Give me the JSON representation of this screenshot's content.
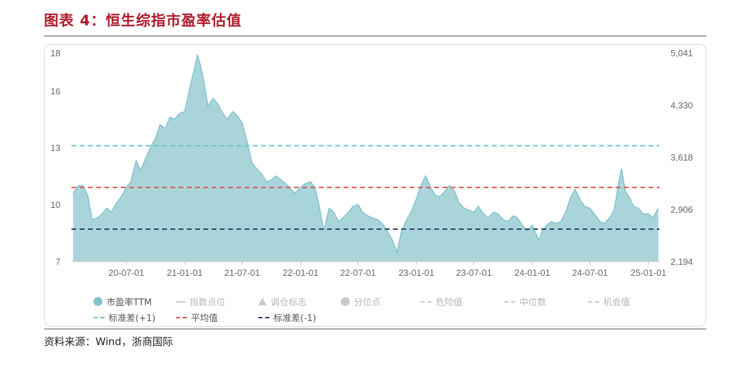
{
  "title": "图表 4：恒生综指市盈率估值",
  "source": "资料来源：Wind，浙商国际",
  "colors": {
    "title": "#b0182a",
    "area_fill": "#a9d5da",
    "area_stroke": "#7fc3cb",
    "plus1": "#6cc4c2",
    "mean": "#d9534f",
    "minus1": "#2c3e6b",
    "muted": "#c8c8c8"
  },
  "legend": [
    {
      "label": "市盈率TTM",
      "symbol": "dot",
      "color": "#7fc3cb",
      "muted": false
    },
    {
      "label": "指数点位",
      "symbol": "line",
      "color": "#c8c8c8",
      "muted": true
    },
    {
      "label": "调仓标志",
      "symbol": "triangle",
      "color": "#c8c8c8",
      "muted": true
    },
    {
      "label": "分位点",
      "symbol": "dot",
      "color": "#c8c8c8",
      "muted": true
    },
    {
      "label": "危险值",
      "symbol": "dash",
      "color": "#c8c8c8",
      "muted": true
    },
    {
      "label": "中位数",
      "symbol": "dash",
      "color": "#c8c8c8",
      "muted": true
    },
    {
      "label": "机会值",
      "symbol": "dash",
      "color": "#c8c8c8",
      "muted": true
    },
    {
      "label": "标准差(+1)",
      "symbol": "dash",
      "color": "#6cc4c2",
      "muted": false
    },
    {
      "label": "平均值",
      "symbol": "dash",
      "color": "#d9534f",
      "muted": false
    },
    {
      "label": "标准差(-1)",
      "symbol": "dash",
      "color": "#2c3e6b",
      "muted": false
    }
  ],
  "chart_data": {
    "type": "area",
    "x_tick_labels": [
      "20-07-01",
      "21-01-01",
      "21-07-01",
      "22-01-01",
      "22-07-01",
      "23-01-01",
      "23-07-01",
      "24-01-01",
      "24-07-01",
      "25-01-01"
    ],
    "y_left": {
      "ticks": [
        7,
        10,
        13,
        16,
        18
      ],
      "tick_labels": [
        "7",
        "10",
        "13",
        "16",
        "18"
      ],
      "range": [
        7,
        18
      ]
    },
    "y_right": {
      "ticks": [
        2194,
        2906,
        3618,
        4330,
        5041
      ],
      "tick_labels": [
        "2,194",
        "2,906",
        "3,618",
        "4,330",
        "5,041"
      ],
      "range": [
        2194,
        5041
      ]
    },
    "grid": false,
    "reference_lines": [
      {
        "name": "标准差(+1)",
        "value": 13.1
      },
      {
        "name": "平均值",
        "value": 10.9
      },
      {
        "name": "标准差(-1)",
        "value": 8.7
      }
    ],
    "series": [
      {
        "name": "市盈率TTM",
        "points": [
          [
            "20-01-15",
            10.6
          ],
          [
            "20-02-01",
            11.0
          ],
          [
            "20-02-15",
            11.0
          ],
          [
            "20-03-01",
            10.5
          ],
          [
            "20-03-15",
            9.2
          ],
          [
            "20-04-01",
            9.3
          ],
          [
            "20-04-15",
            9.5
          ],
          [
            "20-05-01",
            9.8
          ],
          [
            "20-05-15",
            9.6
          ],
          [
            "20-06-01",
            10.1
          ],
          [
            "20-06-15",
            10.4
          ],
          [
            "20-07-01",
            10.9
          ],
          [
            "20-07-15",
            11.2
          ],
          [
            "20-08-01",
            12.3
          ],
          [
            "20-08-15",
            11.8
          ],
          [
            "20-09-01",
            12.5
          ],
          [
            "20-09-15",
            13.0
          ],
          [
            "20-10-01",
            13.5
          ],
          [
            "20-10-15",
            14.2
          ],
          [
            "20-11-01",
            14.0
          ],
          [
            "20-11-15",
            14.6
          ],
          [
            "20-12-01",
            14.5
          ],
          [
            "20-12-15",
            14.8
          ],
          [
            "21-01-01",
            14.9
          ],
          [
            "21-01-15",
            16.0
          ],
          [
            "21-02-01",
            17.2
          ],
          [
            "21-02-10",
            17.9
          ],
          [
            "21-02-20",
            17.3
          ],
          [
            "21-03-01",
            16.6
          ],
          [
            "21-03-15",
            15.2
          ],
          [
            "21-04-01",
            15.6
          ],
          [
            "21-04-15",
            15.3
          ],
          [
            "21-05-01",
            14.8
          ],
          [
            "21-05-15",
            14.5
          ],
          [
            "21-06-01",
            14.9
          ],
          [
            "21-06-15",
            14.7
          ],
          [
            "21-07-01",
            14.3
          ],
          [
            "21-07-15",
            13.4
          ],
          [
            "21-08-01",
            12.2
          ],
          [
            "21-08-15",
            11.9
          ],
          [
            "21-09-01",
            11.6
          ],
          [
            "21-09-15",
            11.2
          ],
          [
            "21-10-01",
            11.3
          ],
          [
            "21-10-15",
            11.5
          ],
          [
            "21-11-01",
            11.3
          ],
          [
            "21-11-15",
            11.1
          ],
          [
            "21-12-01",
            10.8
          ],
          [
            "21-12-15",
            10.6
          ],
          [
            "22-01-01",
            10.9
          ],
          [
            "22-01-15",
            11.1
          ],
          [
            "22-02-01",
            11.2
          ],
          [
            "22-02-15",
            10.9
          ],
          [
            "22-03-01",
            9.9
          ],
          [
            "22-03-15",
            8.6
          ],
          [
            "22-04-01",
            9.8
          ],
          [
            "22-04-15",
            9.6
          ],
          [
            "22-05-01",
            9.1
          ],
          [
            "22-05-15",
            9.3
          ],
          [
            "22-06-01",
            9.6
          ],
          [
            "22-06-15",
            9.9
          ],
          [
            "22-07-01",
            10.0
          ],
          [
            "22-07-15",
            9.6
          ],
          [
            "22-08-01",
            9.4
          ],
          [
            "22-08-15",
            9.3
          ],
          [
            "22-09-01",
            9.2
          ],
          [
            "22-09-15",
            9.0
          ],
          [
            "22-10-01",
            8.6
          ],
          [
            "22-10-15",
            8.2
          ],
          [
            "22-11-01",
            7.5
          ],
          [
            "22-11-15",
            8.6
          ],
          [
            "22-12-01",
            9.2
          ],
          [
            "22-12-15",
            9.6
          ],
          [
            "23-01-01",
            10.3
          ],
          [
            "23-01-15",
            11.0
          ],
          [
            "23-01-30",
            11.5
          ],
          [
            "23-02-15",
            10.9
          ],
          [
            "23-03-01",
            10.5
          ],
          [
            "23-03-15",
            10.4
          ],
          [
            "23-04-01",
            10.7
          ],
          [
            "23-04-15",
            11.0
          ],
          [
            "23-05-01",
            10.7
          ],
          [
            "23-05-15",
            10.1
          ],
          [
            "23-06-01",
            9.8
          ],
          [
            "23-06-15",
            9.7
          ],
          [
            "23-07-01",
            9.6
          ],
          [
            "23-07-15",
            9.9
          ],
          [
            "23-08-01",
            9.5
          ],
          [
            "23-08-15",
            9.3
          ],
          [
            "23-09-01",
            9.6
          ],
          [
            "23-09-15",
            9.5
          ],
          [
            "23-10-01",
            9.2
          ],
          [
            "23-10-15",
            9.1
          ],
          [
            "23-11-01",
            9.4
          ],
          [
            "23-11-15",
            9.3
          ],
          [
            "23-12-01",
            8.9
          ],
          [
            "23-12-15",
            8.6
          ],
          [
            "24-01-01",
            8.9
          ],
          [
            "24-01-22",
            8.1
          ],
          [
            "24-02-01",
            8.6
          ],
          [
            "24-02-15",
            8.9
          ],
          [
            "24-03-01",
            9.1
          ],
          [
            "24-03-15",
            9.0
          ],
          [
            "24-04-01",
            9.1
          ],
          [
            "24-04-15",
            9.6
          ],
          [
            "24-05-01",
            10.4
          ],
          [
            "24-05-15",
            10.8
          ],
          [
            "24-06-01",
            10.2
          ],
          [
            "24-06-15",
            9.9
          ],
          [
            "24-07-01",
            9.8
          ],
          [
            "24-07-15",
            9.5
          ],
          [
            "24-08-01",
            9.1
          ],
          [
            "24-08-15",
            9.0
          ],
          [
            "24-09-01",
            9.3
          ],
          [
            "24-09-15",
            9.7
          ],
          [
            "24-10-01",
            11.3
          ],
          [
            "24-10-08",
            11.9
          ],
          [
            "24-10-20",
            10.7
          ],
          [
            "24-11-01",
            10.4
          ],
          [
            "24-11-15",
            9.9
          ],
          [
            "24-12-01",
            9.8
          ],
          [
            "24-12-15",
            9.5
          ],
          [
            "25-01-01",
            9.5
          ],
          [
            "25-01-15",
            9.3
          ],
          [
            "25-02-01",
            9.8
          ]
        ]
      }
    ]
  }
}
